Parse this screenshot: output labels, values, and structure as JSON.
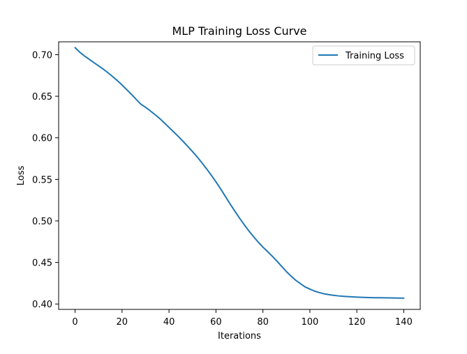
{
  "chart_data": {
    "type": "line",
    "title": "MLP Training Loss Curve",
    "xlabel": "Iterations",
    "ylabel": "Loss",
    "xlim": [
      -7,
      147
    ],
    "ylim": [
      0.3935,
      0.7155
    ],
    "xticks": [
      0,
      20,
      40,
      60,
      80,
      100,
      120,
      140
    ],
    "xtick_labels": [
      "0",
      "20",
      "40",
      "60",
      "80",
      "100",
      "120",
      "140"
    ],
    "yticks": [
      0.4,
      0.45,
      0.5,
      0.55,
      0.6,
      0.65,
      0.7
    ],
    "ytick_labels": [
      "0.40",
      "0.45",
      "0.50",
      "0.55",
      "0.60",
      "0.65",
      "0.70"
    ],
    "grid": false,
    "legend": {
      "position": "top-right"
    },
    "series": [
      {
        "name": "Training Loss",
        "color": "#1f77b4",
        "x": [
          0,
          2,
          4,
          6,
          8,
          10,
          12,
          14,
          16,
          18,
          20,
          22,
          24,
          26,
          28,
          30,
          32,
          34,
          36,
          38,
          40,
          42,
          44,
          46,
          48,
          50,
          52,
          54,
          56,
          58,
          60,
          62,
          64,
          66,
          68,
          70,
          72,
          74,
          76,
          78,
          80,
          82,
          84,
          86,
          88,
          90,
          92,
          94,
          96,
          98,
          100,
          102,
          104,
          106,
          108,
          110,
          112,
          114,
          116,
          118,
          120,
          122,
          124,
          126,
          128,
          130,
          132,
          134,
          136,
          138,
          140
        ],
        "y": [
          0.7085,
          0.703,
          0.6985,
          0.6945,
          0.6905,
          0.6866,
          0.6826,
          0.6783,
          0.6737,
          0.6688,
          0.6635,
          0.658,
          0.6523,
          0.6463,
          0.6405,
          0.6367,
          0.6325,
          0.628,
          0.6233,
          0.618,
          0.6125,
          0.607,
          0.6015,
          0.5957,
          0.5897,
          0.5835,
          0.577,
          0.57,
          0.5627,
          0.555,
          0.547,
          0.5385,
          0.5295,
          0.5205,
          0.512,
          0.5035,
          0.4955,
          0.488,
          0.481,
          0.4745,
          0.4685,
          0.463,
          0.4575,
          0.4515,
          0.4452,
          0.439,
          0.4335,
          0.4285,
          0.4245,
          0.4205,
          0.418,
          0.4155,
          0.4138,
          0.4123,
          0.4113,
          0.4105,
          0.4098,
          0.4093,
          0.4089,
          0.4086,
          0.4083,
          0.4081,
          0.4079,
          0.4077,
          0.4076,
          0.4075,
          0.4074,
          0.4073,
          0.4072,
          0.4071,
          0.407
        ]
      }
    ]
  }
}
